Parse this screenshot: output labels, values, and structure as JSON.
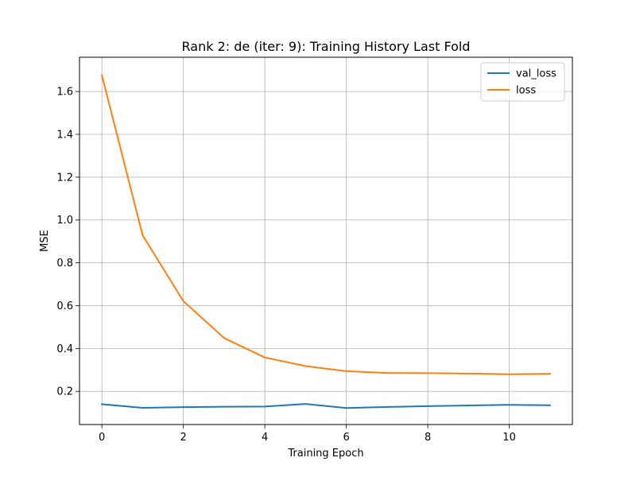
{
  "chart_data": {
    "type": "line",
    "title": "Rank 2: de (iter: 9): Training History Last Fold",
    "xlabel": "Training Epoch",
    "ylabel": "MSE",
    "xlim": [
      -0.55,
      11.55
    ],
    "ylim": [
      0.045,
      1.76
    ],
    "xticks": [
      0,
      2,
      4,
      6,
      8,
      10
    ],
    "yticks": [
      0.2,
      0.4,
      0.6,
      0.8,
      1.0,
      1.2,
      1.4,
      1.6
    ],
    "xtick_labels": [
      "0",
      "2",
      "4",
      "6",
      "8",
      "10"
    ],
    "ytick_labels": [
      "0.2",
      "0.4",
      "0.6",
      "0.8",
      "1.0",
      "1.2",
      "1.4",
      "1.6"
    ],
    "grid": true,
    "legend_position": "top-right",
    "x": [
      0,
      1,
      2,
      3,
      4,
      5,
      6,
      7,
      8,
      9,
      10,
      11
    ],
    "series": [
      {
        "name": "val_loss",
        "color": "#1f77b4",
        "values": [
          0.14,
          0.123,
          0.126,
          0.128,
          0.129,
          0.141,
          0.122,
          0.127,
          0.131,
          0.134,
          0.137,
          0.135
        ]
      },
      {
        "name": "loss",
        "color": "#ff7f0e",
        "values": [
          1.675,
          0.928,
          0.621,
          0.449,
          0.358,
          0.318,
          0.294,
          0.286,
          0.285,
          0.283,
          0.28,
          0.282
        ]
      }
    ]
  }
}
